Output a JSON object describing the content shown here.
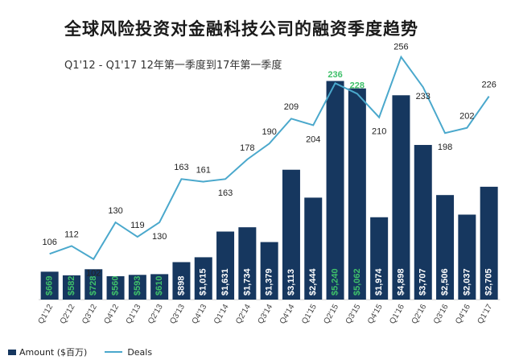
{
  "chart_data": {
    "type": "bar+line",
    "title": "全球风险投资对金融科技公司的融资季度趋势",
    "subtitle": "Q1'12 - Q1'17 12年第一季度到17年第一季度",
    "categories": [
      "Q1'12",
      "Q2'12",
      "Q3'12",
      "Q4'12",
      "Q1'13",
      "Q2'13",
      "Q3'13",
      "Q4'13",
      "Q1'14",
      "Q2'14",
      "Q3'14",
      "Q4'14",
      "Q1'15",
      "Q2'15",
      "Q3'15",
      "Q4'15",
      "Q1'16",
      "Q2'16",
      "Q3'16",
      "Q4'16",
      "Q1'17"
    ],
    "series": [
      {
        "name": "Amount ($百万)",
        "kind": "bar",
        "values": [
          669,
          582,
          728,
          560,
          593,
          610,
          898,
          1015,
          1631,
          1734,
          1379,
          3113,
          2444,
          5240,
          5062,
          1974,
          4898,
          3707,
          2506,
          2037,
          2705
        ],
        "labels": [
          "$669",
          "$582",
          "$728",
          "$560",
          "$593",
          "$610",
          "$898",
          "$1,015",
          "$1,631",
          "$1,734",
          "$1,379",
          "$3,113",
          "$2,444",
          "$5,240",
          "$5,062",
          "$1,974",
          "$4,898",
          "$3,707",
          "$2,506",
          "$2,037",
          "$2,705"
        ]
      },
      {
        "name": "Deals",
        "kind": "line",
        "values": [
          106,
          112,
          102,
          130,
          119,
          130,
          163,
          161,
          163,
          178,
          190,
          209,
          204,
          236,
          228,
          210,
          256,
          233,
          198,
          202,
          226
        ]
      }
    ],
    "legend": [
      "Amount ($百万)",
      "Deals"
    ],
    "legend_position": "bottom-left",
    "colors": {
      "bar": "#16375f",
      "line": "#4aa8cc",
      "label_green": "#3fc06a",
      "label_white": "#ffffff",
      "text": "#222222"
    },
    "green_label_indices": [
      0,
      1,
      2,
      3,
      4,
      5,
      13,
      14
    ]
  }
}
